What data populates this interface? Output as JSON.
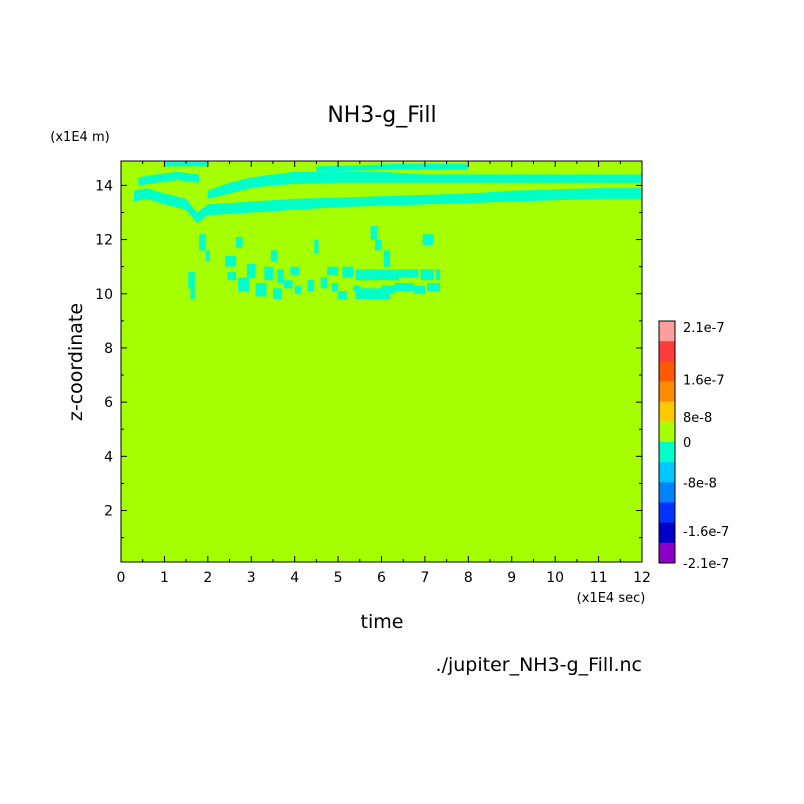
{
  "chart_data": {
    "type": "heatmap",
    "title": "NH3-g_Fill",
    "xlabel": "time",
    "ylabel": "z-coordinate",
    "x_scale_label": "(x1E4 sec)",
    "y_scale_label": "(x1E4 m)",
    "source_label": "./jupiter_NH3-g_Fill.nc",
    "xlim": [
      0,
      12
    ],
    "ylim": [
      0.1,
      14.9
    ],
    "x_ticks": [
      "0",
      "1",
      "2",
      "3",
      "4",
      "5",
      "6",
      "7",
      "8",
      "9",
      "10",
      "11",
      "12"
    ],
    "y_ticks": [
      "2",
      "4",
      "6",
      "8",
      "10",
      "12",
      "14"
    ],
    "background_value": 0,
    "background_color": "#a6ff00",
    "grid": false,
    "colorbar": {
      "labels": [
        "2.1e-7",
        "1.6e-7",
        "8e-8",
        "0",
        "-8e-8",
        "-1.6e-7",
        "-2.1e-7"
      ],
      "bands": [
        {
          "color": "#ff9e9e"
        },
        {
          "color": "#ff3c3c"
        },
        {
          "color": "#ff5a00"
        },
        {
          "color": "#ff8c00"
        },
        {
          "color": "#ffc800"
        },
        {
          "color": "#a6ff00"
        },
        {
          "color": "#00ffc8"
        },
        {
          "color": "#00c8ff"
        },
        {
          "color": "#0082ff"
        },
        {
          "color": "#0032ff"
        },
        {
          "color": "#0000c8"
        },
        {
          "color": "#8c00c8"
        }
      ]
    },
    "negative_regions": {
      "color": "#00ffc8",
      "approx_value": -4e-08,
      "bands": [
        {
          "x": [
            0.3,
            0.6,
            1.0,
            1.5,
            1.75,
            2.0,
            3,
            4,
            5,
            6,
            7,
            8,
            9,
            10,
            11,
            12
          ],
          "y_low": [
            13.4,
            13.5,
            13.3,
            13.1,
            12.6,
            12.9,
            13.0,
            13.1,
            13.2,
            13.25,
            13.3,
            13.35,
            13.4,
            13.45,
            13.5,
            13.5
          ],
          "y_high": [
            13.8,
            13.9,
            13.7,
            13.5,
            13.0,
            13.3,
            13.4,
            13.5,
            13.55,
            13.6,
            13.65,
            13.7,
            13.8,
            13.85,
            13.9,
            13.9
          ]
        },
        {
          "x": [
            2.0,
            2.5,
            3,
            3.5,
            4,
            5,
            6,
            7,
            8,
            9,
            10,
            11,
            12
          ],
          "y_low": [
            13.5,
            13.7,
            13.9,
            14.0,
            14.05,
            14.1,
            14.1,
            14.1,
            14.1,
            14.1,
            14.1,
            14.1,
            14.1
          ],
          "y_high": [
            13.8,
            14.1,
            14.3,
            14.4,
            14.5,
            14.5,
            14.5,
            14.4,
            14.4,
            14.4,
            14.4,
            14.4,
            14.4
          ]
        },
        {
          "x": [
            0.4,
            0.8,
            1.3,
            1.8
          ],
          "y_low": [
            14.0,
            14.1,
            14.2,
            14.1
          ],
          "y_high": [
            14.3,
            14.4,
            14.5,
            14.4
          ]
        },
        {
          "x": [
            1.0,
            1.5,
            2.0
          ],
          "y_low": [
            14.7,
            14.7,
            14.7
          ],
          "y_high": [
            14.9,
            14.9,
            14.9
          ]
        },
        {
          "x": [
            4.5,
            5.5,
            6.5,
            7.5,
            8.0
          ],
          "y_low": [
            14.5,
            14.55,
            14.6,
            14.6,
            14.6
          ],
          "y_high": [
            14.7,
            14.75,
            14.8,
            14.8,
            14.8
          ]
        }
      ],
      "patches": [
        {
          "x": [
            1.55,
            1.7
          ],
          "y": [
            10.2,
            10.8
          ]
        },
        {
          "x": [
            1.6,
            1.7
          ],
          "y": [
            9.8,
            10.2
          ]
        },
        {
          "x": [
            1.8,
            1.95
          ],
          "y": [
            11.6,
            12.2
          ]
        },
        {
          "x": [
            1.95,
            2.05
          ],
          "y": [
            11.2,
            11.6
          ]
        },
        {
          "x": [
            2.4,
            2.65
          ],
          "y": [
            11.0,
            11.4
          ]
        },
        {
          "x": [
            2.45,
            2.65
          ],
          "y": [
            10.5,
            10.8
          ]
        },
        {
          "x": [
            2.65,
            2.8
          ],
          "y": [
            11.7,
            12.1
          ]
        },
        {
          "x": [
            2.7,
            2.95
          ],
          "y": [
            10.1,
            10.6
          ]
        },
        {
          "x": [
            2.9,
            3.1
          ],
          "y": [
            10.6,
            11.1
          ]
        },
        {
          "x": [
            3.1,
            3.35
          ],
          "y": [
            9.9,
            10.4
          ]
        },
        {
          "x": [
            3.3,
            3.5
          ],
          "y": [
            10.5,
            11.0
          ]
        },
        {
          "x": [
            3.45,
            3.6
          ],
          "y": [
            11.2,
            11.6
          ]
        },
        {
          "x": [
            3.5,
            3.7
          ],
          "y": [
            9.8,
            10.2
          ]
        },
        {
          "x": [
            3.6,
            3.75
          ],
          "y": [
            10.4,
            10.9
          ]
        },
        {
          "x": [
            3.75,
            3.95
          ],
          "y": [
            10.2,
            10.5
          ]
        },
        {
          "x": [
            3.9,
            4.1
          ],
          "y": [
            10.7,
            11.0
          ]
        },
        {
          "x": [
            4.0,
            4.15
          ],
          "y": [
            10.0,
            10.3
          ]
        },
        {
          "x": [
            4.45,
            4.55
          ],
          "y": [
            11.5,
            12.0
          ]
        },
        {
          "x": [
            4.3,
            4.45
          ],
          "y": [
            10.1,
            10.5
          ]
        },
        {
          "x": [
            4.6,
            4.75
          ],
          "y": [
            10.2,
            10.6
          ]
        },
        {
          "x": [
            4.75,
            5.0
          ],
          "y": [
            10.7,
            11.0
          ]
        },
        {
          "x": [
            4.85,
            5.0
          ],
          "y": [
            10.1,
            10.4
          ]
        },
        {
          "x": [
            5.0,
            5.2
          ],
          "y": [
            9.8,
            10.1
          ]
        },
        {
          "x": [
            5.1,
            5.35
          ],
          "y": [
            10.6,
            11.0
          ]
        },
        {
          "x": [
            5.35,
            5.5
          ],
          "y": [
            10.1,
            10.3
          ]
        },
        {
          "x": [
            5.4,
            6.4
          ],
          "y": [
            10.5,
            10.9
          ]
        },
        {
          "x": [
            5.4,
            6.2
          ],
          "y": [
            9.8,
            10.2
          ]
        },
        {
          "x": [
            5.75,
            5.9
          ],
          "y": [
            12.0,
            12.5
          ]
        },
        {
          "x": [
            5.85,
            6.0
          ],
          "y": [
            11.6,
            12.0
          ]
        },
        {
          "x": [
            6.05,
            6.2
          ],
          "y": [
            11.0,
            11.6
          ]
        },
        {
          "x": [
            6.0,
            6.3
          ],
          "y": [
            10.0,
            10.3
          ]
        },
        {
          "x": [
            6.3,
            6.75
          ],
          "y": [
            10.1,
            10.4
          ]
        },
        {
          "x": [
            6.4,
            6.85
          ],
          "y": [
            10.6,
            10.9
          ]
        },
        {
          "x": [
            6.75,
            7.0
          ],
          "y": [
            10.0,
            10.3
          ]
        },
        {
          "x": [
            6.9,
            7.2
          ],
          "y": [
            10.5,
            10.9
          ]
        },
        {
          "x": [
            6.95,
            7.2
          ],
          "y": [
            11.8,
            12.2
          ]
        },
        {
          "x": [
            7.05,
            7.35
          ],
          "y": [
            10.1,
            10.4
          ]
        },
        {
          "x": [
            7.25,
            7.35
          ],
          "y": [
            10.5,
            10.9
          ]
        }
      ]
    }
  }
}
